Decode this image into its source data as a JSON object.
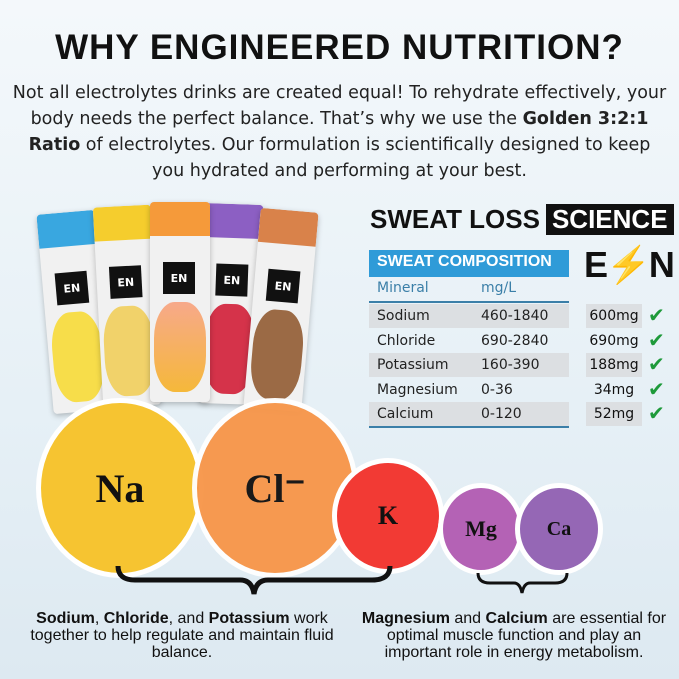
{
  "title": "WHY ENGINEERED NUTRITION?",
  "intro": {
    "text_before": "Not all electrolytes drinks are created equal! To rehydrate effectively, your body needs the perfect balance. That’s why we use the ",
    "bold": "Golden 3:2:1 Ratio",
    "text_after": " of electrolytes. Our formulation is scientifically designed to keep you hydrated and performing at your best."
  },
  "sweat_loss": {
    "label": "SWEAT LOSS",
    "highlight": "SCIENCE"
  },
  "brand_logo": "EN",
  "composition": {
    "title": "SWEAT COMPOSITION",
    "col_mineral": "Mineral",
    "col_unit": "mg/L",
    "rows": [
      {
        "mineral": "Sodium",
        "range": "460-1840",
        "amount": "600mg"
      },
      {
        "mineral": "Chloride",
        "range": "690-2840",
        "amount": "690mg"
      },
      {
        "mineral": "Potassium",
        "range": "160-390",
        "amount": "188mg"
      },
      {
        "mineral": "Magnesium",
        "range": "0-36",
        "amount": "34mg"
      },
      {
        "mineral": "Calcium",
        "range": "0-120",
        "amount": "52mg"
      }
    ]
  },
  "check_icon": "check-icon",
  "check_color": "#1e9a3a",
  "elements": [
    {
      "symbol": "Na",
      "color": "#f6c431"
    },
    {
      "symbol": "Cl⁻",
      "color": "#f7964a"
    },
    {
      "symbol": "K",
      "color": "#f23a34"
    },
    {
      "symbol": "Mg",
      "color": "#b462b5"
    },
    {
      "symbol": "Ca",
      "color": "#9567b5"
    }
  ],
  "desc_left": {
    "b1": "Sodium",
    "t1": ", ",
    "b2": "Chloride",
    "t2": ", and ",
    "b3": "Potassium",
    "t3": " work together to help regulate and maintain fluid balance."
  },
  "desc_right": {
    "b1": "Magnesium",
    "t1": " and ",
    "b2": "Calcium",
    "t2": " are essential for optimal muscle function and play an important role in energy metabolism."
  }
}
